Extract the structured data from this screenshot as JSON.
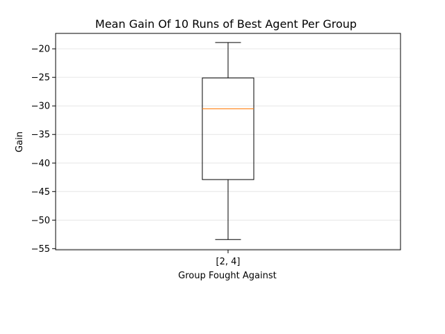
{
  "chart_data": {
    "type": "box",
    "title": "Mean Gain Of 10 Runs of Best Agent Per Group",
    "xlabel": "Group Fought Against",
    "ylabel": "Gain",
    "categories": [
      "[2, 4]"
    ],
    "boxes": [
      {
        "category": "[2, 4]",
        "whisker_low": -53.4,
        "q1": -42.9,
        "median": -30.5,
        "q3": -25.1,
        "whisker_high": -18.9
      }
    ],
    "ylim": [
      -55.2,
      -17.3
    ],
    "yticks": [
      -55,
      -50,
      -45,
      -40,
      -35,
      -30,
      -25,
      -20
    ],
    "ytick_labels": [
      "−55",
      "−50",
      "−45",
      "−40",
      "−35",
      "−30",
      "−25",
      "−20"
    ],
    "grid": "horizontal",
    "colors": {
      "box": "#000000",
      "median": "#ff7f0e",
      "grid": "#e6e6e6"
    }
  }
}
